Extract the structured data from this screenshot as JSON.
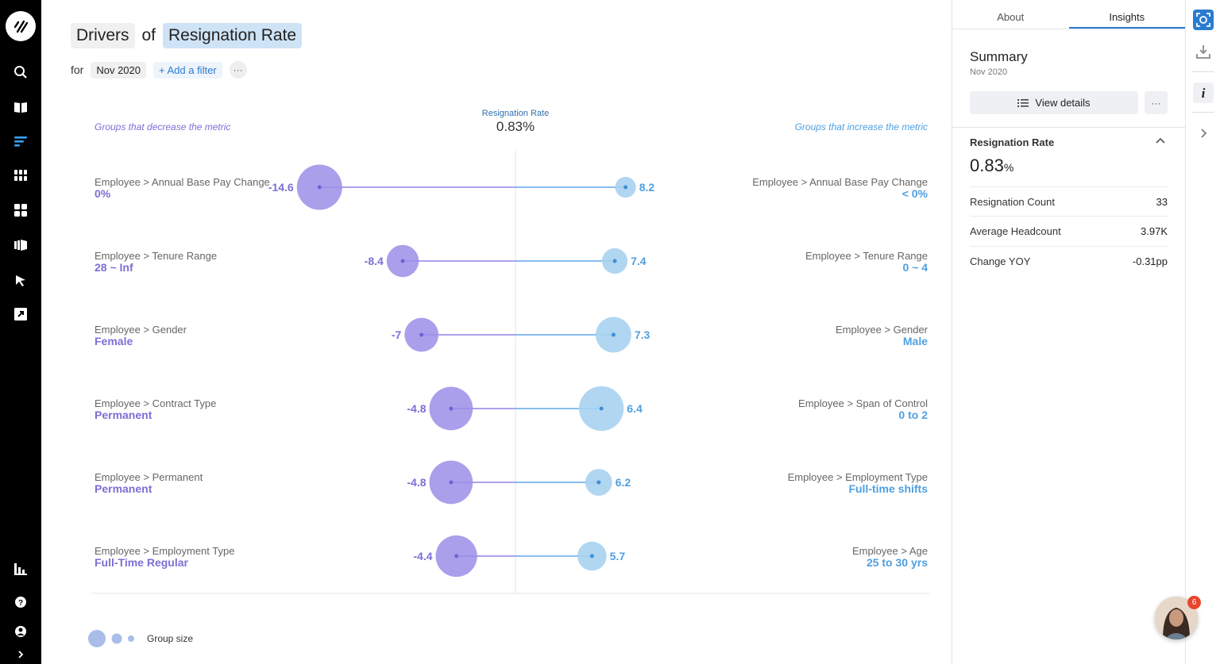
{
  "header": {
    "title_prefix": "Drivers",
    "title_of": "of",
    "title_metric": "Resignation Rate",
    "for_label": "for",
    "period": "Nov 2020",
    "add_filter": "+ Add a filter",
    "more": "···"
  },
  "chart": {
    "center_label": "Resignation Rate",
    "center_value": "0.83%",
    "left_caption": "Groups that decrease the metric",
    "right_caption": "Groups that increase the metric",
    "legend_label": "Group size"
  },
  "chart_data": {
    "type": "scatter",
    "title": "Drivers of Resignation Rate",
    "baseline": "0.83%",
    "rows": [
      {
        "left_dim": "Employee > Annual Base Pay Change",
        "left_group": "0%",
        "left_value": -14.6,
        "left_size": 3,
        "right_dim": "Employee > Annual Base Pay Change",
        "right_group": "< 0%",
        "right_value": 8.2,
        "right_size": 0.3
      },
      {
        "left_dim": "Employee > Tenure Range",
        "left_group": "28 ~ Inf",
        "left_value": -8.4,
        "left_size": 1.2,
        "right_dim": "Employee > Tenure Range",
        "right_group": "0 ~ 4",
        "right_value": 7.4,
        "right_size": 0.6
      },
      {
        "left_dim": "Employee > Gender",
        "left_group": "Female",
        "left_value": -7,
        "left_size": 1.4,
        "right_dim": "Employee > Gender",
        "right_group": "Male",
        "right_value": 7.3,
        "right_size": 1.6
      },
      {
        "left_dim": "Employee > Contract Type",
        "left_group": "Permanent",
        "left_value": -4.8,
        "left_size": 2.7,
        "right_dim": "Employee > Span of Control",
        "right_group": "0 to 2",
        "right_value": 6.4,
        "right_size": 2.9
      },
      {
        "left_dim": "Employee > Permanent",
        "left_group": "Permanent",
        "left_value": -4.8,
        "left_size": 2.7,
        "right_dim": "Employee > Employment Type",
        "right_group": "Full-time shifts",
        "right_value": 6.2,
        "right_size": 0.7
      },
      {
        "left_dim": "Employee > Employment Type",
        "left_group": "Full-Time Regular",
        "left_value": -4.4,
        "left_size": 2.4,
        "right_dim": "Employee > Age",
        "right_group": "25 to 30 yrs",
        "right_value": 5.7,
        "right_size": 0.9
      }
    ],
    "xlabel": "",
    "ylabel": ""
  },
  "panel": {
    "tabs": [
      {
        "label": "About"
      },
      {
        "label": "Insights"
      }
    ],
    "summary_title": "Summary",
    "summary_period": "Nov 2020",
    "view_details": "View details",
    "more": "···",
    "metric_name": "Resignation Rate",
    "metric_value": "0.83",
    "metric_unit": "%",
    "stats": [
      {
        "label": "Resignation Count",
        "value": "33"
      },
      {
        "label": "Average Headcount",
        "value": "3.97K"
      },
      {
        "label": "Change YOY",
        "value": "-0.31pp"
      }
    ]
  },
  "notifications": {
    "count": "6"
  },
  "colors": {
    "left": "#9b8ee8",
    "right": "#a9d1f0",
    "left_text": "#7b6fd6",
    "right_text": "#4f9fe0"
  }
}
